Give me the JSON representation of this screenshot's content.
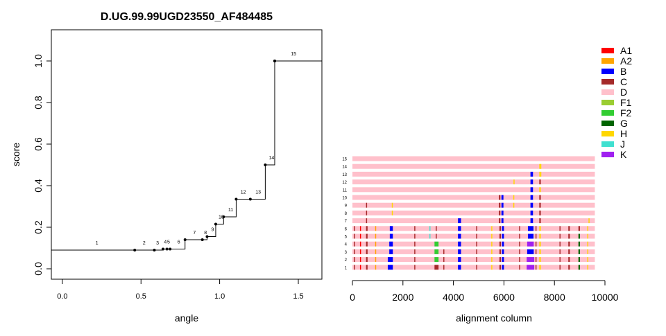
{
  "chart_data": [
    {
      "type": "step",
      "title": "D.UG.99.99UGD23550_AF484485",
      "xlabel": "angle",
      "ylabel": "score",
      "xlim": [
        -0.07,
        1.65
      ],
      "ylim": [
        -0.05,
        1.15
      ],
      "xticks": [
        0.0,
        0.5,
        1.0,
        1.5
      ],
      "xtick_labels": [
        "0.0",
        "0.5",
        "1.0",
        "1.5"
      ],
      "yticks": [
        0.0,
        0.2,
        0.4,
        0.6,
        0.8,
        1.0
      ],
      "ytick_labels": [
        "0.0",
        "0.2",
        "0.4",
        "0.6",
        "0.8",
        "1.0"
      ],
      "start_y": 0.09,
      "points": [
        {
          "label": "1",
          "x": 0.46,
          "y": 0.09,
          "lx": 0.22
        },
        {
          "label": "2",
          "x": 0.585,
          "y": 0.09,
          "lx": 0.52
        },
        {
          "label": "3",
          "x": 0.64,
          "y": 0.095,
          "lx": 0.605
        },
        {
          "label": "4",
          "x": 0.665,
          "y": 0.095,
          "lx": 0.655
        },
        {
          "label": "5",
          "x": 0.685,
          "y": 0.095,
          "lx": 0.675
        },
        {
          "label": "6",
          "x": 0.78,
          "y": 0.14,
          "lx": 0.74
        },
        {
          "label": "7",
          "x": 0.89,
          "y": 0.14,
          "lx": 0.84
        },
        {
          "label": "8",
          "x": 0.92,
          "y": 0.155,
          "lx": 0.91
        },
        {
          "label": "9",
          "x": 0.975,
          "y": 0.215,
          "lx": 0.955
        },
        {
          "label": "10",
          "x": 1.025,
          "y": 0.25,
          "lx": 1.01
        },
        {
          "label": "11",
          "x": 1.105,
          "y": 0.335,
          "lx": 1.07
        },
        {
          "label": "12",
          "x": 1.195,
          "y": 0.335,
          "lx": 1.15
        },
        {
          "label": "13",
          "x": 1.29,
          "y": 0.5,
          "lx": 1.245
        },
        {
          "label": "14",
          "x": 1.35,
          "y": 1.0,
          "lx": 1.33
        },
        {
          "label": "15",
          "x": 1.65,
          "y": 1.0,
          "lx": 1.47
        }
      ]
    },
    {
      "type": "alignment-strips",
      "xlabel": "alignment column",
      "xlim": [
        0,
        10000
      ],
      "xticks": [
        0,
        2000,
        4000,
        6000,
        8000,
        10000
      ],
      "xtick_labels": [
        "0",
        "2000",
        "4000",
        "6000",
        "8000",
        "10000"
      ],
      "row_length": 9600,
      "base_color": "#ffc0cb",
      "legend": [
        {
          "label": "A1",
          "color": "#ff0000"
        },
        {
          "label": "A2",
          "color": "#ffa500"
        },
        {
          "label": "B",
          "color": "#0000ff"
        },
        {
          "label": "C",
          "color": "#a52a2a"
        },
        {
          "label": "D",
          "color": "#ffc0cb"
        },
        {
          "label": "F1",
          "color": "#9acd32"
        },
        {
          "label": "F2",
          "color": "#32cd32"
        },
        {
          "label": "G",
          "color": "#006400"
        },
        {
          "label": "H",
          "color": "#ffd700"
        },
        {
          "label": "J",
          "color": "#40e0d0"
        },
        {
          "label": "K",
          "color": "#a020f0"
        }
      ],
      "rows": [
        {
          "label": "15",
          "marks": []
        },
        {
          "label": "14",
          "marks": [
            [
              7400,
              80,
              "#ffd700"
            ]
          ]
        },
        {
          "label": "13",
          "marks": [
            [
              7050,
              100,
              "#0000ff"
            ],
            [
              7400,
              80,
              "#ffd700"
            ]
          ]
        },
        {
          "label": "12",
          "marks": [
            [
              6380,
              40,
              "#ffd700"
            ],
            [
              7050,
              100,
              "#0000ff"
            ],
            [
              7400,
              60,
              "#a52a2a"
            ]
          ]
        },
        {
          "label": "11",
          "marks": [
            [
              7050,
              100,
              "#0000ff"
            ],
            [
              7400,
              60,
              "#ffd700"
            ]
          ]
        },
        {
          "label": "10",
          "marks": [
            [
              5800,
              60,
              "#a52a2a"
            ],
            [
              5900,
              80,
              "#0000ff"
            ],
            [
              6370,
              40,
              "#ffd700"
            ],
            [
              7050,
              100,
              "#0000ff"
            ],
            [
              7400,
              60,
              "#a52a2a"
            ]
          ]
        },
        {
          "label": "9",
          "marks": [
            [
              540,
              40,
              "#a52a2a"
            ],
            [
              1560,
              40,
              "#ffd700"
            ],
            [
              5800,
              60,
              "#a52a2a"
            ],
            [
              5900,
              80,
              "#0000ff"
            ],
            [
              6370,
              40,
              "#ffd700"
            ],
            [
              7050,
              100,
              "#0000ff"
            ],
            [
              7400,
              60,
              "#a52a2a"
            ]
          ]
        },
        {
          "label": "8",
          "marks": [
            [
              540,
              40,
              "#a52a2a"
            ],
            [
              1560,
              40,
              "#ffd700"
            ],
            [
              5800,
              60,
              "#a52a2a"
            ],
            [
              5900,
              80,
              "#0000ff"
            ],
            [
              7050,
              100,
              "#0000ff"
            ],
            [
              7400,
              60,
              "#a52a2a"
            ]
          ]
        },
        {
          "label": "7",
          "marks": [
            [
              540,
              40,
              "#a52a2a"
            ],
            [
              4180,
              120,
              "#0000ff"
            ],
            [
              5800,
              60,
              "#a52a2a"
            ],
            [
              5900,
              80,
              "#0000ff"
            ],
            [
              7050,
              100,
              "#0000ff"
            ],
            [
              7400,
              60,
              "#a52a2a"
            ],
            [
              9350,
              40,
              "#ffd700"
            ]
          ]
        },
        {
          "label": "6",
          "marks": [
            [
              60,
              40,
              "#a52a2a"
            ],
            [
              300,
              40,
              "#ff0000"
            ],
            [
              540,
              60,
              "#a52a2a"
            ],
            [
              900,
              40,
              "#ffa500"
            ],
            [
              1480,
              120,
              "#0000ff"
            ],
            [
              2450,
              40,
              "#a52a2a"
            ],
            [
              3050,
              40,
              "#40e0d0"
            ],
            [
              3300,
              40,
              "#a52a2a"
            ],
            [
              4180,
              120,
              "#0000ff"
            ],
            [
              4900,
              40,
              "#a52a2a"
            ],
            [
              5500,
              40,
              "#ffd700"
            ],
            [
              5820,
              60,
              "#a52a2a"
            ],
            [
              5920,
              80,
              "#0000ff"
            ],
            [
              6600,
              40,
              "#a52a2a"
            ],
            [
              6950,
              220,
              "#0000ff"
            ],
            [
              7250,
              40,
              "#a52a2a"
            ],
            [
              7400,
              60,
              "#ffd700"
            ],
            [
              8200,
              40,
              "#a52a2a"
            ],
            [
              8550,
              60,
              "#a52a2a"
            ],
            [
              8950,
              60,
              "#a52a2a"
            ],
            [
              9300,
              40,
              "#ffd700"
            ]
          ]
        },
        {
          "label": "5",
          "marks": [
            [
              60,
              40,
              "#a52a2a"
            ],
            [
              300,
              40,
              "#ff0000"
            ],
            [
              540,
              60,
              "#a52a2a"
            ],
            [
              900,
              40,
              "#ffa500"
            ],
            [
              1480,
              120,
              "#0000ff"
            ],
            [
              2450,
              40,
              "#a52a2a"
            ],
            [
              3050,
              40,
              "#40e0d0"
            ],
            [
              3300,
              40,
              "#a52a2a"
            ],
            [
              4180,
              120,
              "#0000ff"
            ],
            [
              4900,
              40,
              "#a52a2a"
            ],
            [
              5500,
              40,
              "#ffd700"
            ],
            [
              5820,
              60,
              "#a52a2a"
            ],
            [
              5920,
              80,
              "#0000ff"
            ],
            [
              6600,
              40,
              "#a52a2a"
            ],
            [
              6950,
              220,
              "#0000ff"
            ],
            [
              7250,
              40,
              "#a52a2a"
            ],
            [
              7400,
              60,
              "#ffd700"
            ],
            [
              8200,
              40,
              "#a52a2a"
            ],
            [
              8550,
              60,
              "#a52a2a"
            ],
            [
              8950,
              60,
              "#006400"
            ],
            [
              9300,
              40,
              "#ffd700"
            ]
          ]
        },
        {
          "label": "4",
          "marks": [
            [
              60,
              40,
              "#a52a2a"
            ],
            [
              300,
              40,
              "#ff0000"
            ],
            [
              540,
              60,
              "#a52a2a"
            ],
            [
              900,
              40,
              "#ffa500"
            ],
            [
              1460,
              140,
              "#0000ff"
            ],
            [
              2450,
              40,
              "#a52a2a"
            ],
            [
              3250,
              160,
              "#32cd32"
            ],
            [
              4180,
              120,
              "#0000ff"
            ],
            [
              4900,
              40,
              "#a52a2a"
            ],
            [
              5500,
              40,
              "#ffd700"
            ],
            [
              5820,
              60,
              "#a52a2a"
            ],
            [
              5920,
              80,
              "#0000ff"
            ],
            [
              6600,
              40,
              "#a52a2a"
            ],
            [
              6920,
              260,
              "#a020f0"
            ],
            [
              7250,
              40,
              "#a52a2a"
            ],
            [
              7400,
              60,
              "#ffd700"
            ],
            [
              8200,
              40,
              "#a52a2a"
            ],
            [
              8550,
              60,
              "#a52a2a"
            ],
            [
              8950,
              60,
              "#006400"
            ],
            [
              9300,
              40,
              "#ffd700"
            ]
          ]
        },
        {
          "label": "3",
          "marks": [
            [
              60,
              40,
              "#a52a2a"
            ],
            [
              300,
              40,
              "#ff0000"
            ],
            [
              540,
              60,
              "#a52a2a"
            ],
            [
              900,
              40,
              "#ffa500"
            ],
            [
              1460,
              140,
              "#0000ff"
            ],
            [
              2450,
              40,
              "#a52a2a"
            ],
            [
              3250,
              160,
              "#32cd32"
            ],
            [
              3600,
              40,
              "#a52a2a"
            ],
            [
              4180,
              120,
              "#0000ff"
            ],
            [
              4900,
              40,
              "#a52a2a"
            ],
            [
              5500,
              40,
              "#ffd700"
            ],
            [
              5820,
              60,
              "#a52a2a"
            ],
            [
              5920,
              80,
              "#0000ff"
            ],
            [
              6600,
              40,
              "#a52a2a"
            ],
            [
              6920,
              260,
              "#0000ff"
            ],
            [
              7250,
              40,
              "#a52a2a"
            ],
            [
              7400,
              60,
              "#ffd700"
            ],
            [
              8200,
              40,
              "#a52a2a"
            ],
            [
              8550,
              60,
              "#a52a2a"
            ],
            [
              8950,
              60,
              "#006400"
            ],
            [
              9300,
              40,
              "#ffd700"
            ]
          ]
        },
        {
          "label": "2",
          "marks": [
            [
              60,
              40,
              "#a52a2a"
            ],
            [
              300,
              40,
              "#ff0000"
            ],
            [
              540,
              60,
              "#a52a2a"
            ],
            [
              900,
              40,
              "#ffa500"
            ],
            [
              1400,
              200,
              "#0000ff"
            ],
            [
              2450,
              40,
              "#a52a2a"
            ],
            [
              3250,
              160,
              "#32cd32"
            ],
            [
              3600,
              40,
              "#a52a2a"
            ],
            [
              4180,
              120,
              "#0000ff"
            ],
            [
              4900,
              40,
              "#a52a2a"
            ],
            [
              5500,
              40,
              "#ffd700"
            ],
            [
              5820,
              60,
              "#a52a2a"
            ],
            [
              5920,
              80,
              "#0000ff"
            ],
            [
              6600,
              40,
              "#a52a2a"
            ],
            [
              6900,
              300,
              "#a020f0"
            ],
            [
              7250,
              40,
              "#a52a2a"
            ],
            [
              7400,
              60,
              "#ffd700"
            ],
            [
              8200,
              40,
              "#a52a2a"
            ],
            [
              8550,
              60,
              "#a52a2a"
            ],
            [
              8950,
              60,
              "#006400"
            ],
            [
              9300,
              40,
              "#ffd700"
            ]
          ]
        },
        {
          "label": "1",
          "marks": [
            [
              60,
              40,
              "#a52a2a"
            ],
            [
              300,
              40,
              "#ff0000"
            ],
            [
              540,
              60,
              "#a52a2a"
            ],
            [
              900,
              40,
              "#ffa500"
            ],
            [
              1400,
              200,
              "#0000ff"
            ],
            [
              2450,
              40,
              "#a52a2a"
            ],
            [
              3250,
              160,
              "#a52a2a"
            ],
            [
              3600,
              40,
              "#a52a2a"
            ],
            [
              4180,
              120,
              "#0000ff"
            ],
            [
              4900,
              40,
              "#a52a2a"
            ],
            [
              5500,
              40,
              "#ffd700"
            ],
            [
              5820,
              60,
              "#a52a2a"
            ],
            [
              5920,
              80,
              "#0000ff"
            ],
            [
              6600,
              40,
              "#a52a2a"
            ],
            [
              6900,
              300,
              "#a020f0"
            ],
            [
              7250,
              40,
              "#a52a2a"
            ],
            [
              7400,
              60,
              "#ffd700"
            ],
            [
              8200,
              40,
              "#a52a2a"
            ],
            [
              8550,
              60,
              "#a52a2a"
            ],
            [
              8950,
              60,
              "#006400"
            ],
            [
              9300,
              40,
              "#ffd700"
            ]
          ]
        }
      ]
    }
  ]
}
